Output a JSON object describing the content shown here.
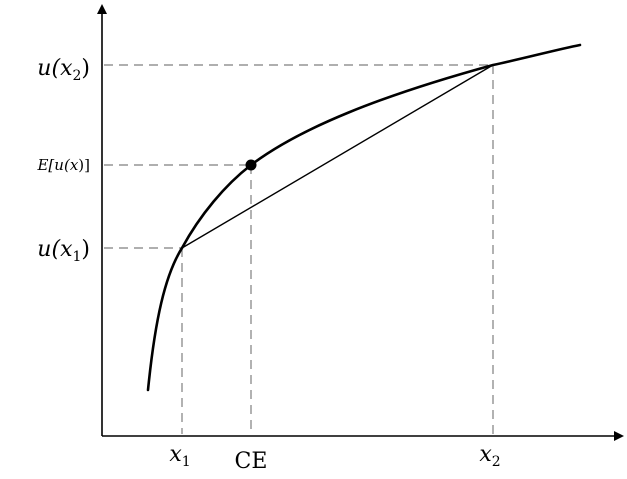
{
  "diagram": {
    "y_labels": {
      "u_x2": {
        "pre": "u(",
        "var": "x",
        "sub": "2",
        "post": ")"
      },
      "eu": {
        "pre": "E[u(",
        "var": "x",
        "post": ")]"
      },
      "u_x1": {
        "pre": "u(",
        "var": "x",
        "sub": "1",
        "post": ")"
      }
    },
    "x_labels": {
      "x1": {
        "var": "x",
        "sub": "1"
      },
      "ce": "CE",
      "x2": {
        "var": "x",
        "sub": "2"
      }
    },
    "colors": {
      "curve": "#000000",
      "guides": "#7f7f7f",
      "axes": "#000000"
    }
  }
}
